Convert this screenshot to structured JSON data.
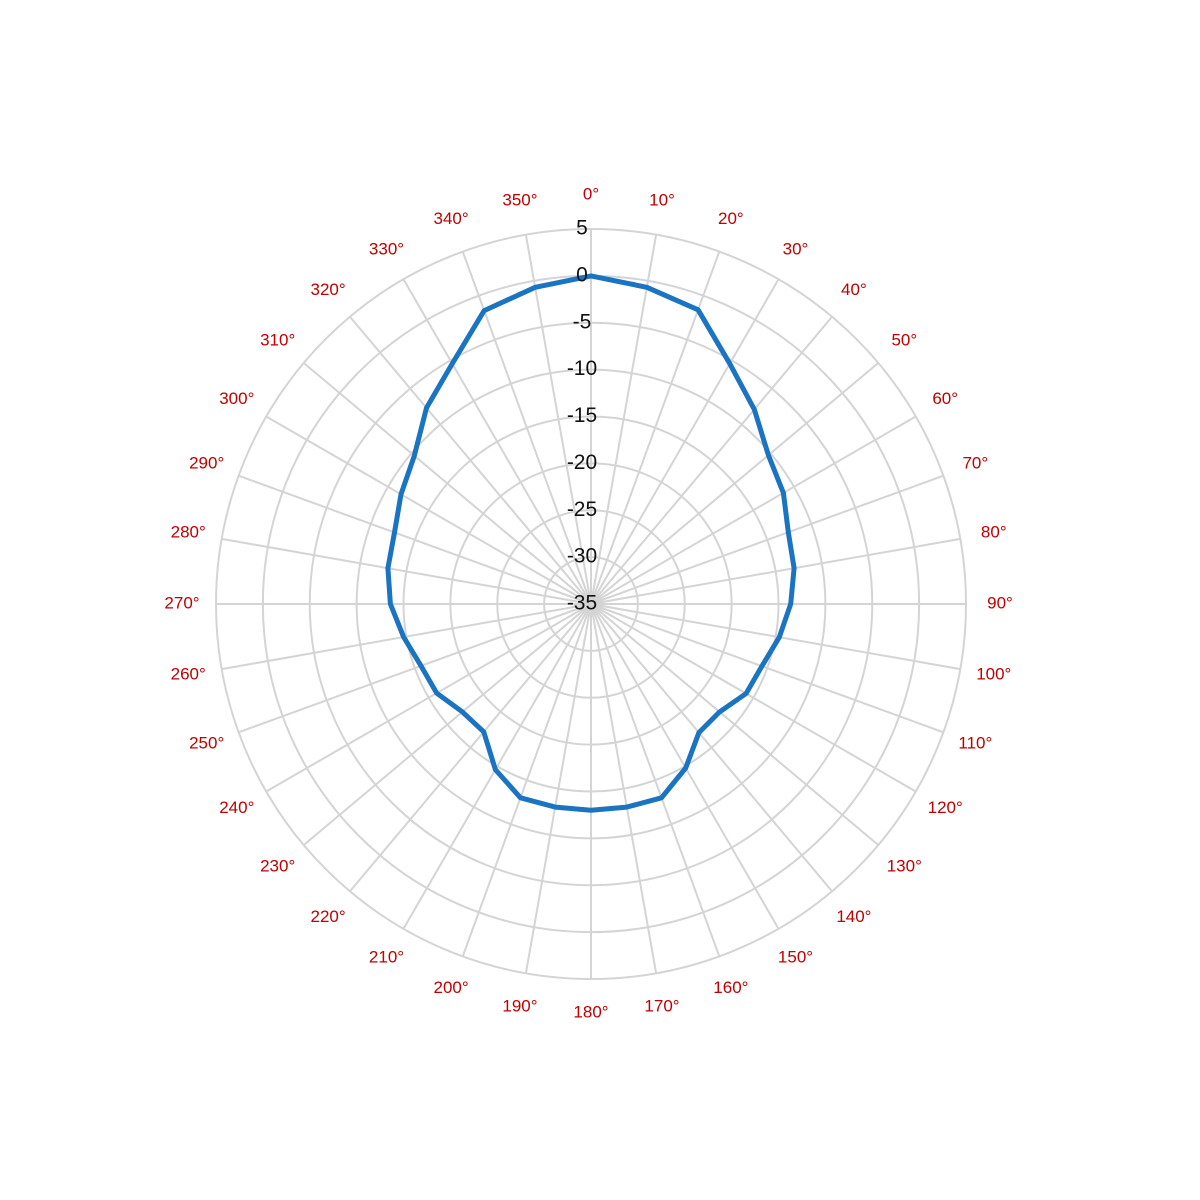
{
  "chart_data": {
    "type": "polar",
    "x": [
      0,
      10,
      20,
      30,
      40,
      50,
      60,
      70,
      80,
      90,
      100,
      110,
      120,
      130,
      140,
      150,
      160,
      170,
      180,
      190,
      200,
      210,
      220,
      230,
      240,
      250,
      260,
      270,
      280,
      290,
      300,
      310,
      320,
      330,
      340,
      350
    ],
    "series": [
      {
        "color": "#1a74c2",
        "values": [
          0,
          -0.7,
          -1.6,
          -5.4,
          -7.9,
          -10.3,
          -11.3,
          -12.6,
          -13,
          -13.7,
          -14.6,
          -15.6,
          -15.9,
          -17.1,
          -17.1,
          -14.8,
          -13,
          -13,
          -13,
          -13,
          -13,
          -14.6,
          -17.2,
          -17.1,
          -16,
          -15.7,
          -14.7,
          -13.6,
          -13,
          -12.7,
          -11.6,
          -10.4,
          -7.7,
          -5.4,
          -1.7,
          -0.7
        ]
      }
    ],
    "ylim": [
      -35,
      5
    ],
    "yticks": [
      -35,
      -30,
      -25,
      -20,
      -15,
      -10,
      -5,
      0,
      5
    ],
    "xticks": [
      {
        "value": 0,
        "label": "0°"
      },
      {
        "value": 10,
        "label": "10°"
      },
      {
        "value": 20,
        "label": "20°"
      },
      {
        "value": 30,
        "label": "30°"
      },
      {
        "value": 40,
        "label": "40°"
      },
      {
        "value": 50,
        "label": "50°"
      },
      {
        "value": 60,
        "label": "60°"
      },
      {
        "value": 70,
        "label": "70°"
      },
      {
        "value": 80,
        "label": "80°"
      },
      {
        "value": 90,
        "label": "90°"
      },
      {
        "value": 100,
        "label": "100°"
      },
      {
        "value": 110,
        "label": "110°"
      },
      {
        "value": 120,
        "label": "120°"
      },
      {
        "value": 130,
        "label": "130°"
      },
      {
        "value": 140,
        "label": "140°"
      },
      {
        "value": 150,
        "label": "150°"
      },
      {
        "value": 160,
        "label": "160°"
      },
      {
        "value": 170,
        "label": "170°"
      },
      {
        "value": 180,
        "label": "180°"
      },
      {
        "value": 190,
        "label": "190°"
      },
      {
        "value": 200,
        "label": "200°"
      },
      {
        "value": 210,
        "label": "210°"
      },
      {
        "value": 220,
        "label": "220°"
      },
      {
        "value": 230,
        "label": "230°"
      },
      {
        "value": 240,
        "label": "240°"
      },
      {
        "value": 250,
        "label": "250°"
      },
      {
        "value": 260,
        "label": "260°"
      },
      {
        "value": 270,
        "label": "270°"
      },
      {
        "value": 280,
        "label": "280°"
      },
      {
        "value": 290,
        "label": "290°"
      },
      {
        "value": 300,
        "label": "300°"
      },
      {
        "value": 310,
        "label": "310°"
      },
      {
        "value": 320,
        "label": "320°"
      },
      {
        "value": 330,
        "label": "330°"
      },
      {
        "value": 340,
        "label": "340°"
      },
      {
        "value": 350,
        "label": "350°"
      }
    ],
    "grid": true
  }
}
